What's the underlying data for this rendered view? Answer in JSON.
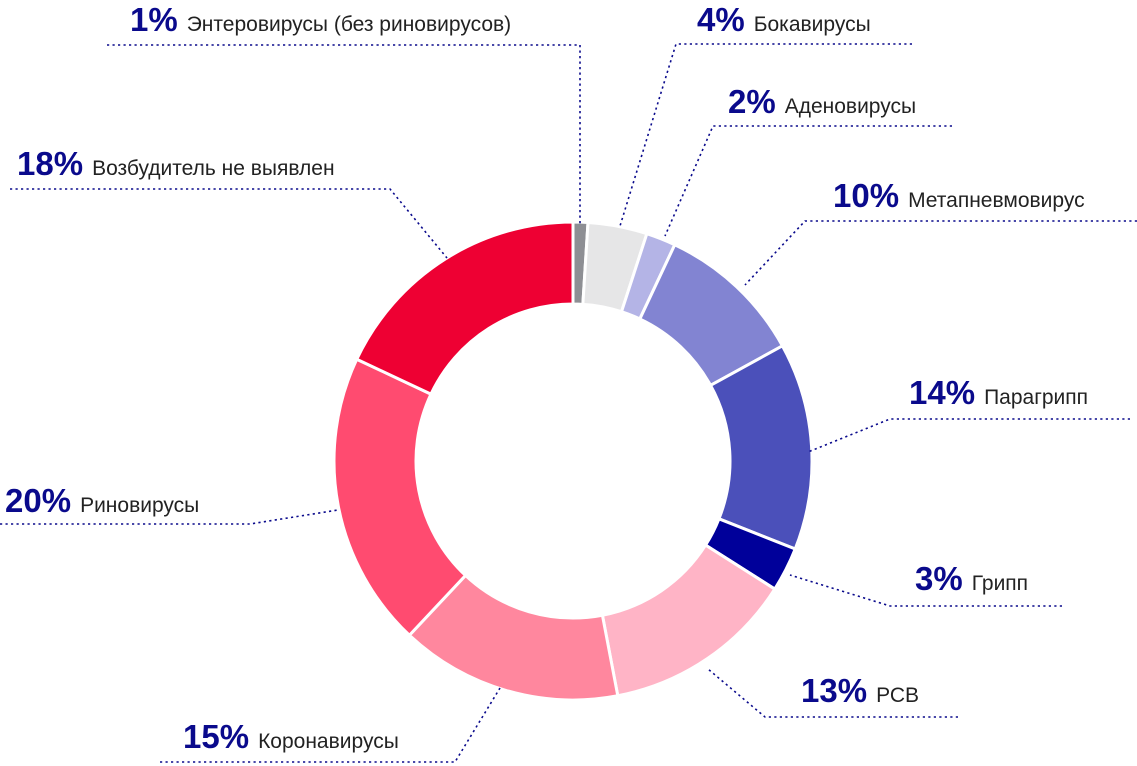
{
  "chart_data": {
    "type": "pie",
    "variant": "donut",
    "title": "",
    "unit": "%",
    "slices": [
      {
        "label": "Энтеровирусы (без риновирусов)",
        "value": 1,
        "color": "#8e8f94"
      },
      {
        "label": "Бокавирусы",
        "value": 4,
        "color": "#e6e6e7"
      },
      {
        "label": "Аденовирусы",
        "value": 2,
        "color": "#b4b4e6"
      },
      {
        "label": "Метапневмовирус",
        "value": 10,
        "color": "#8284d2"
      },
      {
        "label": "Парагрипп",
        "value": 14,
        "color": "#4b50ba"
      },
      {
        "label": "Грипп",
        "value": 3,
        "color": "#00009a"
      },
      {
        "label": "РСВ",
        "value": 13,
        "color": "#ffb4c6"
      },
      {
        "label": "Коронавирусы",
        "value": 15,
        "color": "#ff879e"
      },
      {
        "label": "Риновирусы",
        "value": 20,
        "color": "#ff4b70"
      },
      {
        "label": "Возбудитель не выявлен",
        "value": 18,
        "color": "#ee0033"
      }
    ],
    "label_color": "#0a0a8c"
  }
}
